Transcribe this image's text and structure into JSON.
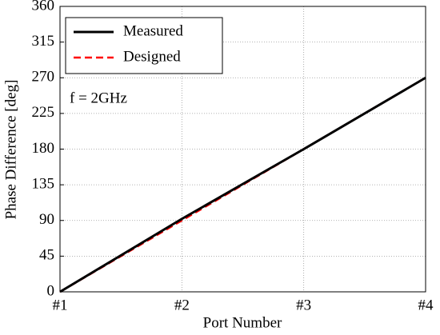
{
  "chart_data": {
    "type": "line",
    "categories": [
      "#1",
      "#2",
      "#3",
      "#4"
    ],
    "series": [
      {
        "name": "Measured",
        "color": "#000000",
        "dash": "solid",
        "values": [
          0,
          92,
          180,
          270
        ]
      },
      {
        "name": "Designed",
        "color": "#ff0000",
        "dash": "dashed",
        "values": [
          0,
          90,
          180,
          270
        ]
      }
    ],
    "ylim": [
      0,
      360
    ],
    "yticks": [
      0,
      45,
      90,
      135,
      180,
      225,
      270,
      315,
      360
    ],
    "xlabel": "Port Number",
    "ylabel": "Phase Difference [deg]",
    "annotation": "f = 2GHz",
    "grid": true,
    "legend": "upper left"
  }
}
